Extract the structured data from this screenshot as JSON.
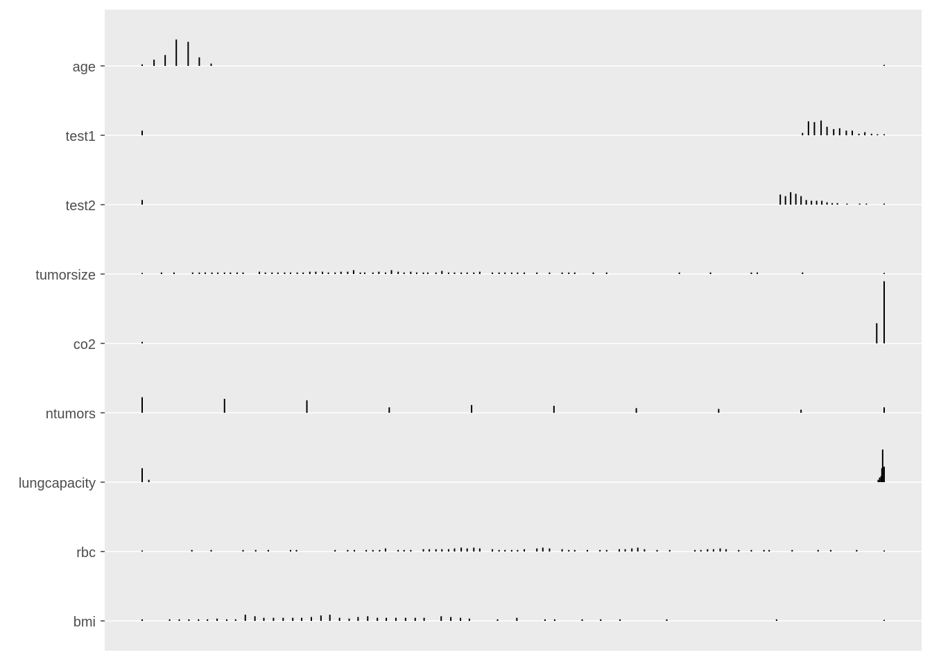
{
  "chart_data": {
    "type": "spike-histogram",
    "title": "",
    "xlabel": "",
    "ylabel": "",
    "xlim": [
      0,
      1
    ],
    "panel_background": "#ebebeb",
    "grid_color": "#ffffff",
    "spike_color": "#000000",
    "categories": [
      "age",
      "test1",
      "test2",
      "tumorsize",
      "co2",
      "ntumors",
      "lungcapacity",
      "rbc",
      "bmi"
    ],
    "series": [
      {
        "name": "age",
        "x": [
          0.0,
          0.016,
          0.031,
          0.046,
          0.062,
          0.077,
          0.093,
          1.0
        ],
        "h": [
          0.02,
          0.08,
          0.14,
          0.34,
          0.31,
          0.11,
          0.03,
          0.01
        ]
      },
      {
        "name": "test1",
        "x": [
          0.0,
          0.89,
          0.898,
          0.906,
          0.915,
          0.923,
          0.932,
          0.94,
          0.949,
          0.957,
          0.966,
          0.974,
          0.983,
          0.991,
          1.0
        ],
        "h": [
          0.06,
          0.03,
          0.18,
          0.17,
          0.19,
          0.11,
          0.08,
          0.09,
          0.06,
          0.06,
          0.02,
          0.04,
          0.02,
          0.01,
          0.01
        ]
      },
      {
        "name": "test2",
        "x": [
          0.0,
          0.86,
          0.867,
          0.874,
          0.881,
          0.888,
          0.895,
          0.902,
          0.909,
          0.916,
          0.923,
          0.93,
          0.937,
          0.95,
          0.967,
          0.976,
          1.0
        ],
        "h": [
          0.06,
          0.13,
          0.11,
          0.16,
          0.14,
          0.11,
          0.06,
          0.05,
          0.05,
          0.05,
          0.03,
          0.02,
          0.02,
          0.01,
          0.01,
          0.01,
          0.01
        ]
      },
      {
        "name": "tumorsize",
        "x": [
          0.0,
          0.026,
          0.043,
          0.068,
          0.077,
          0.085,
          0.094,
          0.102,
          0.111,
          0.119,
          0.128,
          0.136,
          0.158,
          0.166,
          0.175,
          0.183,
          0.192,
          0.2,
          0.209,
          0.217,
          0.226,
          0.234,
          0.243,
          0.251,
          0.26,
          0.268,
          0.277,
          0.285,
          0.294,
          0.3,
          0.311,
          0.319,
          0.328,
          0.336,
          0.345,
          0.353,
          0.362,
          0.37,
          0.379,
          0.385,
          0.396,
          0.404,
          0.413,
          0.421,
          0.43,
          0.438,
          0.447,
          0.455,
          0.472,
          0.481,
          0.489,
          0.498,
          0.506,
          0.515,
          0.532,
          0.549,
          0.566,
          0.575,
          0.583,
          0.608,
          0.626,
          0.724,
          0.766,
          0.821,
          0.829,
          0.89,
          1.0
        ],
        "h": [
          0.01,
          0.02,
          0.02,
          0.02,
          0.02,
          0.02,
          0.02,
          0.02,
          0.02,
          0.02,
          0.02,
          0.02,
          0.03,
          0.02,
          0.02,
          0.02,
          0.02,
          0.02,
          0.02,
          0.02,
          0.03,
          0.03,
          0.03,
          0.02,
          0.02,
          0.03,
          0.03,
          0.05,
          0.02,
          0.02,
          0.02,
          0.03,
          0.02,
          0.05,
          0.03,
          0.02,
          0.03,
          0.02,
          0.02,
          0.02,
          0.02,
          0.04,
          0.02,
          0.02,
          0.02,
          0.02,
          0.02,
          0.03,
          0.02,
          0.02,
          0.02,
          0.02,
          0.02,
          0.02,
          0.02,
          0.02,
          0.02,
          0.02,
          0.02,
          0.02,
          0.02,
          0.02,
          0.02,
          0.02,
          0.02,
          0.02,
          0.01
        ]
      },
      {
        "name": "co2",
        "x": [
          0.0,
          0.99,
          1.0
        ],
        "h": [
          0.02,
          0.26,
          0.8
        ]
      },
      {
        "name": "ntumors",
        "x": [
          0.0,
          0.111,
          0.222,
          0.333,
          0.444,
          0.555,
          0.666,
          0.777,
          0.888,
          1.0
        ],
        "h": [
          0.2,
          0.18,
          0.16,
          0.07,
          0.1,
          0.09,
          0.06,
          0.05,
          0.04,
          0.07
        ]
      },
      {
        "name": "lungcapacity",
        "x": [
          0.0,
          0.009,
          0.992,
          0.994,
          0.996,
          0.997,
          0.998,
          1.0
        ],
        "h": [
          0.18,
          0.03,
          0.03,
          0.06,
          0.08,
          0.18,
          0.42,
          0.2
        ]
      },
      {
        "name": "rbc",
        "x": [
          0.0,
          0.067,
          0.093,
          0.136,
          0.153,
          0.17,
          0.2,
          0.208,
          0.26,
          0.277,
          0.286,
          0.302,
          0.311,
          0.32,
          0.328,
          0.345,
          0.353,
          0.362,
          0.379,
          0.387,
          0.396,
          0.404,
          0.413,
          0.421,
          0.43,
          0.438,
          0.447,
          0.455,
          0.472,
          0.481,
          0.489,
          0.498,
          0.506,
          0.515,
          0.532,
          0.54,
          0.549,
          0.566,
          0.575,
          0.583,
          0.6,
          0.617,
          0.626,
          0.643,
          0.651,
          0.66,
          0.668,
          0.677,
          0.694,
          0.711,
          0.745,
          0.753,
          0.762,
          0.77,
          0.779,
          0.787,
          0.804,
          0.821,
          0.838,
          0.845,
          0.876,
          0.911,
          0.928,
          0.963,
          1.0
        ],
        "h": [
          0.01,
          0.02,
          0.02,
          0.02,
          0.02,
          0.02,
          0.02,
          0.02,
          0.02,
          0.02,
          0.02,
          0.02,
          0.02,
          0.02,
          0.04,
          0.02,
          0.02,
          0.02,
          0.03,
          0.03,
          0.03,
          0.03,
          0.03,
          0.04,
          0.05,
          0.04,
          0.05,
          0.04,
          0.03,
          0.02,
          0.02,
          0.02,
          0.02,
          0.03,
          0.04,
          0.05,
          0.04,
          0.03,
          0.02,
          0.02,
          0.02,
          0.02,
          0.02,
          0.03,
          0.03,
          0.04,
          0.05,
          0.03,
          0.02,
          0.02,
          0.02,
          0.02,
          0.03,
          0.03,
          0.04,
          0.03,
          0.02,
          0.02,
          0.02,
          0.02,
          0.02,
          0.02,
          0.02,
          0.02,
          0.01
        ]
      },
      {
        "name": "bmi",
        "x": [
          0.0,
          0.037,
          0.05,
          0.063,
          0.076,
          0.088,
          0.101,
          0.114,
          0.126,
          0.139,
          0.152,
          0.164,
          0.177,
          0.19,
          0.203,
          0.215,
          0.228,
          0.241,
          0.253,
          0.266,
          0.279,
          0.291,
          0.304,
          0.317,
          0.329,
          0.342,
          0.355,
          0.368,
          0.38,
          0.403,
          0.416,
          0.429,
          0.441,
          0.479,
          0.505,
          0.543,
          0.556,
          0.593,
          0.618,
          0.644,
          0.707,
          0.855,
          1.0
        ],
        "h": [
          0.02,
          0.02,
          0.02,
          0.02,
          0.02,
          0.02,
          0.03,
          0.02,
          0.02,
          0.08,
          0.06,
          0.04,
          0.04,
          0.04,
          0.04,
          0.04,
          0.05,
          0.07,
          0.08,
          0.04,
          0.03,
          0.05,
          0.06,
          0.04,
          0.04,
          0.04,
          0.04,
          0.04,
          0.04,
          0.06,
          0.05,
          0.04,
          0.03,
          0.02,
          0.04,
          0.02,
          0.02,
          0.02,
          0.02,
          0.02,
          0.02,
          0.02,
          0.01
        ]
      }
    ]
  }
}
